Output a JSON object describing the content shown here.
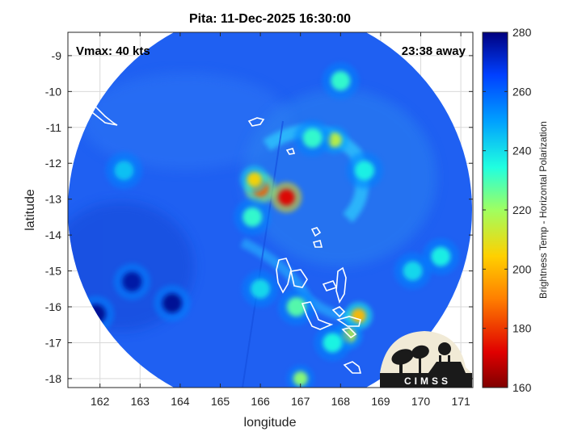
{
  "chart_data": {
    "type": "heatmap",
    "title": "Pita: 11-Dec-2025 16:30:00",
    "xlabel": "longitude",
    "ylabel": "latitude",
    "xlim": [
      161.2,
      171.3
    ],
    "ylim": [
      -18.25,
      -8.35
    ],
    "x_ticks": [
      162,
      163,
      164,
      165,
      166,
      167,
      168,
      169,
      170,
      171
    ],
    "y_ticks": [
      -9,
      -10,
      -11,
      -12,
      -13,
      -14,
      -15,
      -16,
      -17,
      -18
    ],
    "grid": true,
    "annotations": {
      "vmax": "Vmax: 40 kts",
      "away": "23:38 away"
    },
    "colorbar": {
      "label": "Brightness Temp - Horizontal Polarization",
      "range": [
        160,
        280
      ],
      "ticks": [
        280,
        260,
        240,
        220,
        200,
        180,
        160
      ]
    },
    "swath_center": [
      166.3,
      -13.3
    ],
    "background_value": 266,
    "features": [
      {
        "lon": 166.65,
        "lat": -12.95,
        "value": 172
      },
      {
        "lon": 166.0,
        "lat": -12.7,
        "value": 185
      },
      {
        "lon": 165.85,
        "lat": -12.45,
        "value": 205
      },
      {
        "lon": 167.85,
        "lat": -11.35,
        "value": 215
      },
      {
        "lon": 167.3,
        "lat": -11.3,
        "value": 232
      },
      {
        "lon": 168.45,
        "lat": -16.25,
        "value": 200
      },
      {
        "lon": 168.2,
        "lat": -16.8,
        "value": 215
      },
      {
        "lon": 166.9,
        "lat": -16.0,
        "value": 228
      },
      {
        "lon": 165.8,
        "lat": -13.5,
        "value": 232
      },
      {
        "lon": 168.6,
        "lat": -12.2,
        "value": 236
      },
      {
        "lon": 170.5,
        "lat": -14.6,
        "value": 236
      },
      {
        "lon": 169.8,
        "lat": -15.0,
        "value": 240
      },
      {
        "lon": 167.8,
        "lat": -17.0,
        "value": 235
      },
      {
        "lon": 167.0,
        "lat": -18.0,
        "value": 222
      },
      {
        "lon": 166.0,
        "lat": -15.5,
        "value": 240
      },
      {
        "lon": 168.0,
        "lat": -9.7,
        "value": 232
      },
      {
        "lon": 162.6,
        "lat": -12.2,
        "value": 244
      },
      {
        "lon": 161.9,
        "lat": -16.2,
        "value": 278
      },
      {
        "lon": 163.8,
        "lat": -15.9,
        "value": 278
      },
      {
        "lon": 162.8,
        "lat": -15.3,
        "value": 276
      }
    ],
    "colors": {
      "ocean": "#1a5cf0",
      "deep": "#1440c8",
      "coast": "#ffffff",
      "grid": "#d9d9d9"
    }
  },
  "logo": {
    "text": "CIMSS",
    "icon": "cimss-satellite-dish-icon"
  }
}
